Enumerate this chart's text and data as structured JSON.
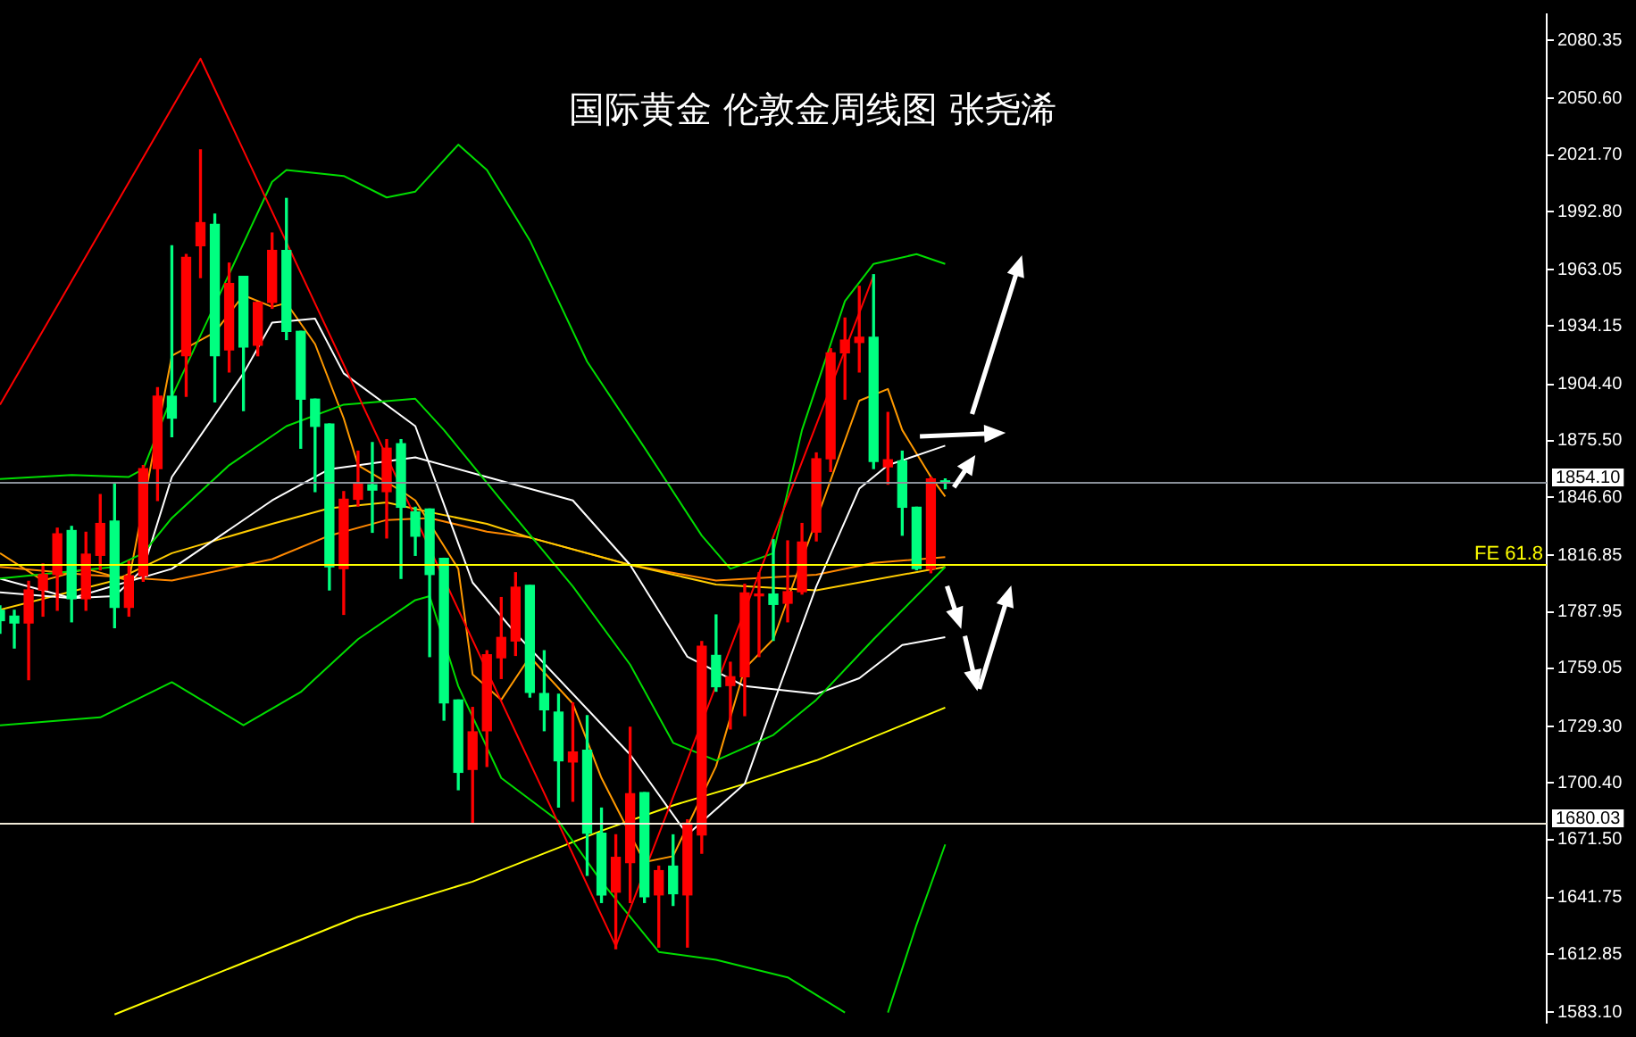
{
  "chart_data": {
    "type": "candlestick",
    "title": "国际黄金 伦敦金周线图 张尧浠",
    "categories": [
      null,
      null,
      null,
      null,
      null,
      null,
      null,
      null,
      null,
      null,
      null,
      null,
      null,
      null,
      null,
      null,
      null,
      null,
      null,
      null,
      null,
      null,
      null,
      null,
      null,
      null,
      null,
      null,
      null,
      null,
      null,
      null,
      null,
      null,
      null,
      null,
      null,
      null,
      null,
      null,
      null,
      null,
      null,
      null,
      null,
      null,
      null,
      null,
      null,
      null,
      null,
      null,
      null,
      null,
      null,
      null,
      null,
      null,
      null,
      null,
      null,
      null,
      null,
      null,
      null,
      null,
      null,
      null,
      null,
      null,
      null,
      null,
      null,
      null,
      null,
      null,
      null,
      null,
      null,
      null,
      null,
      null,
      null,
      null,
      null,
      null,
      null,
      null,
      null,
      null,
      null,
      null,
      null,
      null,
      null,
      null,
      null,
      null,
      null,
      null,
      null,
      null,
      null,
      null,
      null,
      null,
      null,
      null,
      null
    ],
    "ohlc": [
      [
        1788.8,
        1791,
        1777,
        1783.5
      ],
      [
        1785.8,
        1788.8,
        1769.5,
        1782.3
      ],
      [
        1782.3,
        1803.6,
        1753.3,
        1799.2
      ],
      [
        1799.2,
        1812.5,
        1785.8,
        1807.1
      ],
      [
        1807.1,
        1830.8,
        1788.8,
        1827.9
      ],
      [
        1829.6,
        1831.7,
        1782.9,
        1794.7
      ],
      [
        1794.7,
        1828.7,
        1788.8,
        1817.5
      ],
      [
        1816.9,
        1848,
        1809.5,
        1833.2
      ],
      [
        1834.4,
        1853.9,
        1779.9,
        1790.3
      ],
      [
        1790.3,
        1813.9,
        1785.8,
        1806.5
      ],
      [
        1806.5,
        1862.8,
        1803.6,
        1861.3
      ],
      [
        1861.3,
        1902.7,
        1845,
        1898.3
      ],
      [
        1898.3,
        1975.3,
        1877.6,
        1887.1
      ],
      [
        1919,
        1970.8,
        1898.3,
        1969.3
      ],
      [
        1975.3,
        2024.4,
        1959,
        1987.1
      ],
      [
        1986.2,
        1991.5,
        1895.4,
        1919
      ],
      [
        1922,
        1966.4,
        1910.7,
        1956
      ],
      [
        1959.6,
        1959.6,
        1890.9,
        1923.5
      ],
      [
        1924.4,
        1946.3,
        1919,
        1946.3
      ],
      [
        1946.3,
        1981.8,
        1943.3,
        1972.9
      ],
      [
        1972.9,
        1999.5,
        1927.3,
        1931.5
      ],
      [
        1931.5,
        1931.5,
        1871.7,
        1896.8
      ],
      [
        1896.8,
        1896.8,
        1849.5,
        1882.9
      ],
      [
        1884.1,
        1884.1,
        1799.2,
        1811
      ],
      [
        1810.1,
        1849.5,
        1786.7,
        1845.6
      ],
      [
        1845.6,
        1870.2,
        1842.1,
        1853.9
      ],
      [
        1853,
        1874.6,
        1828.7,
        1850.3
      ],
      [
        1849.5,
        1876.1,
        1825.8,
        1871.7
      ],
      [
        1874,
        1876.1,
        1805.1,
        1841.5
      ],
      [
        1839.1,
        1841.5,
        1816.9,
        1826.7
      ],
      [
        1840.6,
        1840.6,
        1765.1,
        1807.1
      ],
      [
        1815.4,
        1815.4,
        1732.6,
        1741.4
      ],
      [
        1742.9,
        1742.9,
        1697,
        1705.9
      ],
      [
        1707.4,
        1739.1,
        1680.2,
        1726.6
      ],
      [
        1727.2,
        1768.1,
        1708.9,
        1766
      ],
      [
        1764.5,
        1795.3,
        1753.9,
        1774.9
      ],
      [
        1773.1,
        1808,
        1765.7,
        1800.6
      ],
      [
        1801.5,
        1801.5,
        1744.4,
        1746.8
      ],
      [
        1746.2,
        1768.1,
        1727.2,
        1737.9
      ],
      [
        1736.7,
        1745.9,
        1688.1,
        1711.8
      ],
      [
        1711.2,
        1741.4,
        1691.1,
        1716.3
      ],
      [
        1717.2,
        1734.9,
        1653.2,
        1674.8
      ],
      [
        1674.8,
        1687.6,
        1639.3,
        1643.2
      ],
      [
        1644.6,
        1673.9,
        1615.6,
        1662.4
      ],
      [
        1659.7,
        1729,
        1639.3,
        1694.9
      ],
      [
        1695.5,
        1695.5,
        1639.3,
        1642.3
      ],
      [
        1643.2,
        1657.9,
        1616.5,
        1655.6
      ],
      [
        1657.9,
        1673.9,
        1637.8,
        1643.8
      ],
      [
        1643.2,
        1681.6,
        1616.5,
        1679.9
      ],
      [
        1673.9,
        1772.8,
        1664.5,
        1770.4
      ],
      [
        1765.7,
        1786.4,
        1747.4,
        1749.7
      ],
      [
        1750.3,
        1762.2,
        1728.1,
        1754.8
      ],
      [
        1754.8,
        1802.1,
        1734.9,
        1797.7
      ],
      [
        1796.2,
        1808,
        1765.1,
        1797.1
      ],
      [
        1797.1,
        1824.9,
        1773.4,
        1791.8
      ],
      [
        1792.4,
        1824.3,
        1782.9,
        1798.3
      ],
      [
        1798.3,
        1833.2,
        1797.1,
        1823.7
      ],
      [
        1828.8,
        1869.3,
        1824.3,
        1866.3
      ],
      [
        1866.3,
        1922.6,
        1859.8,
        1920.5
      ],
      [
        1920.5,
        1938.3,
        1896.8,
        1927
      ],
      [
        1925.8,
        1954.5,
        1910.7,
        1928.5
      ],
      [
        1928.5,
        1960.5,
        1861.3,
        1864.9
      ],
      [
        1862.2,
        1890,
        1853.3,
        1865.8
      ],
      [
        1865.2,
        1870.2,
        1827.2,
        1841.5
      ],
      [
        1841.5,
        1841.5,
        1809.5,
        1810.1
      ],
      [
        1810.1,
        1856.9,
        1808,
        1856
      ],
      [
        1855,
        1856,
        1851,
        1854.1
      ],
      null,
      null,
      null,
      null,
      null,
      null,
      null,
      null,
      null,
      null,
      null,
      null,
      null,
      null,
      null,
      null,
      null,
      null,
      null,
      null,
      null,
      null,
      null,
      null,
      null,
      null,
      null,
      null,
      null,
      null,
      null,
      null,
      null,
      null,
      null,
      null,
      null,
      null,
      null,
      null,
      null,
      null
    ],
    "colors": [
      "#00ff80",
      "#00ff80",
      "#ff0000",
      "#ff0000",
      "#ff0000",
      "#00ff80",
      "#ff0000",
      "#ff0000",
      "#00ff80",
      "#ff0000",
      "#ff0000",
      "#ff0000",
      "#00ff80",
      "#ff0000",
      "#ff0000",
      "#00ff80",
      "#ff0000",
      "#00ff80",
      "#ff0000",
      "#ff0000",
      "#00ff80",
      "#00ff80",
      "#00ff80",
      "#00ff80",
      "#ff0000",
      "#ff0000",
      "#00ff80",
      "#ff0000",
      "#00ff80",
      "#00ff80",
      "#00ff80",
      "#00ff80",
      "#00ff80",
      "#ff0000",
      "#ff0000",
      "#ff0000",
      "#ff0000",
      "#00ff80",
      "#00ff80",
      "#00ff80",
      "#ff0000",
      "#00ff80",
      "#00ff80",
      "#ff0000",
      "#ff0000",
      "#00ff80",
      "#ff0000",
      "#00ff80",
      "#ff0000",
      "#ff0000",
      "#00ff80",
      "#ff0000",
      "#ff0000",
      "#ff0000",
      "#00ff80",
      "#ff0000",
      "#ff0000",
      "#ff0000",
      "#ff0000",
      "#ff0000",
      "#ff0000",
      "#00ff80",
      "#ff0000",
      "#00ff80",
      "#00ff80",
      "#ff0000",
      "#00ff80",
      null,
      null,
      null,
      null,
      null,
      null,
      null,
      null,
      null,
      null,
      null,
      null,
      null,
      null,
      null,
      null,
      null,
      null,
      null,
      null,
      null,
      null,
      null,
      null,
      null,
      null,
      null,
      null,
      null,
      null,
      null,
      null,
      null,
      null,
      null,
      null,
      null,
      null,
      null,
      null,
      null,
      null
    ],
    "series": [
      {
        "type": "line",
        "color": "#ff0000",
        "values": [
          1894,
          null,
          null,
          null,
          null,
          null,
          null,
          null,
          null,
          null,
          null,
          null,
          null,
          null,
          2071,
          null,
          null,
          null,
          null,
          null,
          null,
          null,
          null,
          null,
          null,
          null,
          null,
          null,
          null,
          null,
          null,
          null,
          null,
          null,
          null,
          null,
          null,
          null,
          null,
          null,
          null,
          null,
          null,
          1617,
          null,
          null,
          null,
          null,
          null,
          null,
          null,
          null,
          null,
          null,
          null,
          null,
          null,
          null,
          null,
          null,
          null,
          1960,
          null,
          null,
          null,
          null,
          null,
          null,
          null,
          null,
          null,
          null,
          null,
          null,
          null,
          null,
          null,
          null,
          null,
          null,
          null,
          null,
          null,
          null,
          null,
          null,
          null,
          null,
          null,
          null,
          null,
          null,
          null,
          null,
          null,
          null,
          null,
          null,
          null,
          null,
          null,
          null,
          null,
          null,
          null,
          null,
          null,
          null,
          null
        ]
      },
      {
        "type": "line",
        "color": "#00dd00",
        "values": [
          1856,
          null,
          null,
          null,
          null,
          1858,
          null,
          null,
          null,
          1857,
          1861,
          null,
          1898,
          null,
          null,
          null,
          null,
          null,
          null,
          2008,
          2014,
          null,
          null,
          null,
          2011,
          null,
          null,
          2000,
          null,
          2003,
          null,
          null,
          2027,
          null,
          2014,
          null,
          null,
          1978,
          null,
          null,
          null,
          1916,
          null,
          null,
          null,
          1872,
          null,
          null,
          null,
          1827,
          null,
          1810,
          null,
          null,
          1818,
          null,
          1881,
          null,
          null,
          1947,
          null,
          1966,
          null,
          null,
          1971,
          null,
          1966,
          null,
          null,
          null,
          null,
          null,
          null,
          null,
          null,
          null,
          null,
          null,
          null,
          null,
          null,
          null,
          null,
          null,
          null,
          null,
          null,
          null,
          null,
          null,
          null,
          null,
          null,
          null,
          null,
          null,
          null,
          null,
          null,
          null,
          null,
          null,
          null,
          null,
          null,
          null,
          null,
          null,
          null
        ]
      },
      {
        "type": "line",
        "color": "#00dd00",
        "values": [
          1805,
          null,
          null,
          null,
          null,
          null,
          null,
          null,
          1811,
          null,
          1818,
          null,
          1836,
          null,
          null,
          null,
          1863,
          null,
          null,
          null,
          1883,
          null,
          null,
          null,
          1894,
          null,
          null,
          null,
          null,
          1897,
          null,
          1881,
          null,
          null,
          null,
          1845,
          null,
          null,
          null,
          null,
          1801,
          null,
          null,
          null,
          1761,
          null,
          null,
          1721,
          null,
          null,
          1712,
          null,
          null,
          null,
          1725,
          null,
          null,
          1743,
          null,
          null,
          null,
          1774,
          null,
          null,
          null,
          null,
          1811,
          null,
          null,
          null,
          null,
          null,
          null,
          null,
          null,
          null,
          null,
          null,
          null,
          null,
          null,
          null,
          null,
          null,
          null,
          null,
          null,
          null,
          null,
          null,
          null,
          null,
          null,
          null,
          null,
          null,
          null,
          null,
          null,
          null,
          null,
          null,
          null,
          null,
          null,
          null,
          null,
          null,
          null
        ]
      },
      {
        "type": "line",
        "color": "#00dd00",
        "values": [
          1730,
          null,
          null,
          null,
          null,
          null,
          null,
          1734,
          null,
          null,
          null,
          null,
          1752,
          null,
          null,
          null,
          null,
          1730,
          null,
          null,
          null,
          1747,
          null,
          null,
          null,
          1774,
          null,
          null,
          null,
          1794,
          1796,
          null,
          1750,
          null,
          null,
          1703,
          null,
          null,
          null,
          1681,
          null,
          null,
          1650,
          null,
          null,
          null,
          1614,
          null,
          null,
          null,
          1610,
          null,
          null,
          null,
          null,
          1601,
          null,
          null,
          null,
          1583,
          null,
          null,
          null,
          null,
          null,
          null,
          null,
          null,
          null,
          null,
          null,
          null,
          null,
          null,
          null,
          null,
          null,
          null,
          null,
          null,
          null,
          null,
          null,
          null,
          null,
          null,
          null,
          null,
          null,
          null,
          null,
          null,
          null,
          null,
          null,
          null,
          null,
          null,
          null,
          null,
          null,
          null,
          null,
          null,
          null,
          null,
          null,
          null,
          null
        ]
      },
      {
        "type": "line",
        "color": "#00dd00",
        "values": [
          null,
          null,
          null,
          null,
          null,
          null,
          null,
          null,
          null,
          null,
          null,
          null,
          null,
          null,
          null,
          null,
          null,
          null,
          null,
          null,
          null,
          null,
          null,
          null,
          null,
          null,
          null,
          null,
          null,
          null,
          null,
          null,
          null,
          null,
          null,
          null,
          null,
          null,
          null,
          null,
          null,
          null,
          null,
          null,
          null,
          null,
          null,
          null,
          null,
          null,
          null,
          null,
          null,
          null,
          null,
          null,
          null,
          null,
          null,
          null,
          null,
          null,
          1583,
          null,
          1628,
          null,
          1669,
          null,
          null,
          null,
          null,
          null,
          null,
          null,
          null,
          null,
          null,
          null,
          null,
          null,
          null,
          null,
          null,
          null,
          null,
          null,
          null,
          null,
          null,
          null,
          null,
          null,
          null,
          null,
          null,
          null,
          null,
          null,
          null,
          null,
          null,
          null,
          null,
          null,
          null,
          null,
          null,
          null,
          null
        ]
      },
      {
        "type": "line",
        "color": "#ffffff",
        "values": [
          1805,
          null,
          null,
          null,
          null,
          1795,
          null,
          null,
          1796,
          null,
          1810,
          null,
          1857,
          null,
          null,
          null,
          null,
          1910,
          null,
          1936,
          null,
          null,
          1938,
          null,
          1910,
          null,
          null,
          null,
          null,
          1883,
          null,
          null,
          null,
          1803,
          null,
          null,
          1777,
          null,
          null,
          null,
          null,
          null,
          null,
          null,
          1715,
          null,
          null,
          null,
          1674,
          null,
          null,
          null,
          1700,
          null,
          1741,
          null,
          null,
          1801,
          null,
          null,
          1851,
          null,
          1863,
          null,
          null,
          null,
          1873,
          null,
          null,
          null,
          null,
          null,
          null,
          null,
          null,
          null,
          null,
          null,
          null,
          null,
          null,
          null,
          null,
          null,
          null,
          null,
          null,
          null,
          null,
          null,
          null,
          null,
          null,
          null,
          null,
          null,
          null,
          null,
          null,
          null,
          null,
          null,
          null,
          null,
          null,
          null,
          null,
          null,
          null
        ]
      },
      {
        "type": "line",
        "color": "#ffffff",
        "values": [
          1798,
          null,
          null,
          null,
          null,
          1795,
          null,
          null,
          null,
          null,
          null,
          null,
          1810,
          null,
          null,
          null,
          null,
          null,
          null,
          1845,
          null,
          null,
          null,
          1861,
          null,
          null,
          null,
          null,
          null,
          1867,
          null,
          null,
          null,
          null,
          1857,
          null,
          null,
          null,
          null,
          null,
          1845,
          null,
          null,
          null,
          1812,
          null,
          null,
          null,
          1765,
          null,
          null,
          null,
          1750,
          null,
          null,
          null,
          null,
          1746,
          null,
          null,
          1754,
          null,
          null,
          1771,
          null,
          null,
          1775,
          null,
          null,
          null,
          null,
          null,
          null,
          null,
          null,
          null,
          null,
          null,
          null,
          null,
          null,
          null,
          null,
          null,
          null,
          null,
          null,
          null,
          null,
          null,
          null,
          null,
          null,
          null,
          null,
          null,
          null,
          null,
          null,
          null,
          null,
          null,
          null,
          null,
          null,
          null,
          null,
          null,
          null
        ]
      },
      {
        "type": "line",
        "color": "#ff9900",
        "values": [
          1818,
          null,
          null,
          1804,
          null,
          null,
          1810,
          null,
          null,
          1804,
          null,
          null,
          1919,
          null,
          null,
          1931,
          null,
          1950,
          null,
          1944,
          1946,
          null,
          1925,
          null,
          1887,
          1863,
          null,
          null,
          1850,
          1845,
          null,
          null,
          1810,
          1756,
          null,
          1743,
          null,
          1765,
          null,
          null,
          1741,
          null,
          1703,
          null,
          null,
          1660,
          null,
          1663,
          null,
          null,
          1709,
          null,
          1759,
          null,
          1774,
          null,
          null,
          null,
          null,
          null,
          1896,
          null,
          1902,
          1881,
          null,
          1857,
          1847,
          null,
          null,
          null,
          null,
          null,
          null,
          null,
          null,
          null,
          null,
          null,
          null,
          null,
          null,
          null,
          null,
          null,
          null,
          null,
          null,
          null,
          null,
          null,
          null,
          null,
          null,
          null,
          null,
          null,
          null,
          null,
          null,
          null,
          null,
          null,
          null,
          null,
          null,
          null,
          null,
          null,
          null
        ]
      },
      {
        "type": "line",
        "color": "#ffcc00",
        "values": [
          1789,
          null,
          null,
          null,
          null,
          null,
          null,
          null,
          1804,
          null,
          null,
          null,
          1818,
          null,
          null,
          null,
          null,
          null,
          null,
          1833,
          null,
          null,
          null,
          1841,
          null,
          null,
          null,
          1844,
          null,
          null,
          1839,
          null,
          null,
          null,
          1833,
          null,
          null,
          1826,
          null,
          null,
          null,
          null,
          null,
          null,
          1812,
          null,
          null,
          null,
          null,
          null,
          1802,
          null,
          null,
          null,
          null,
          null,
          null,
          1799,
          null,
          null,
          null,
          null,
          null,
          null,
          null,
          null,
          1811,
          null,
          null,
          null,
          null,
          null,
          null,
          null,
          null,
          null,
          null,
          null,
          null,
          null,
          null,
          null,
          null,
          null,
          null,
          null,
          null,
          null,
          null,
          null,
          null,
          null,
          null,
          null,
          null,
          null,
          null,
          null,
          null,
          null,
          null,
          null,
          null,
          null,
          null,
          null,
          null,
          null,
          null
        ]
      },
      {
        "type": "line",
        "color": "#ff8800",
        "values": [
          1811,
          null,
          null,
          null,
          null,
          null,
          1807,
          null,
          null,
          null,
          null,
          null,
          1804,
          null,
          null,
          null,
          null,
          null,
          null,
          1815,
          null,
          null,
          null,
          1827,
          null,
          null,
          null,
          1835,
          null,
          null,
          1836,
          null,
          null,
          null,
          1829,
          null,
          null,
          1826,
          null,
          null,
          null,
          null,
          null,
          null,
          1812,
          null,
          null,
          null,
          null,
          null,
          1804,
          null,
          null,
          null,
          null,
          null,
          null,
          1807,
          null,
          null,
          null,
          1813,
          null,
          null,
          null,
          null,
          1816,
          null,
          null,
          null,
          null,
          null,
          null,
          null,
          null,
          null,
          null,
          null,
          null,
          null,
          null,
          null,
          null,
          null,
          null,
          null,
          null,
          null,
          null,
          null,
          null,
          null,
          null,
          null,
          null,
          null,
          null,
          null,
          null,
          null,
          null,
          null,
          null,
          null,
          null,
          null,
          null,
          null,
          null
        ]
      },
      {
        "type": "line",
        "color": "#ffff00",
        "values": [
          null,
          null,
          null,
          null,
          null,
          null,
          null,
          null,
          1582,
          null,
          null,
          null,
          null,
          null,
          null,
          null,
          null,
          null,
          null,
          null,
          null,
          null,
          null,
          null,
          null,
          1632,
          null,
          null,
          null,
          null,
          null,
          null,
          null,
          1650,
          null,
          null,
          null,
          null,
          null,
          null,
          null,
          null,
          1676,
          null,
          null,
          null,
          null,
          1689,
          null,
          null,
          null,
          null,
          1700,
          null,
          null,
          null,
          null,
          1712,
          null,
          null,
          null,
          null,
          null,
          null,
          null,
          null,
          1739,
          null,
          null,
          null,
          null,
          null,
          null,
          null,
          null,
          null,
          null,
          null,
          null,
          null,
          null,
          null,
          null,
          null,
          null,
          null,
          null,
          null,
          null,
          null,
          null,
          null,
          null,
          null,
          null,
          null,
          null,
          null,
          null,
          null,
          null,
          null,
          null,
          null,
          null,
          null,
          null,
          null,
          null
        ]
      }
    ],
    "ylim": [
      1577.8,
      2093.7
    ],
    "yticks": [
      {
        "value": 2080.35,
        "label": "2080.35"
      },
      {
        "value": 2050.6,
        "label": "2050.60"
      },
      {
        "value": 2021.7,
        "label": "2021.70"
      },
      {
        "value": 1992.8,
        "label": "1992.80"
      },
      {
        "value": 1963.05,
        "label": "1963.05"
      },
      {
        "value": 1934.15,
        "label": "1934.15"
      },
      {
        "value": 1904.4,
        "label": "1904.40"
      },
      {
        "value": 1875.5,
        "label": "1875.50"
      },
      {
        "value": 1846.6,
        "label": "1846.60"
      },
      {
        "value": 1816.85,
        "label": "1816.85"
      },
      {
        "value": 1787.95,
        "label": "1787.95"
      },
      {
        "value": 1759.05,
        "label": "1759.05"
      },
      {
        "value": 1729.3,
        "label": "1729.30"
      },
      {
        "value": 1700.4,
        "label": "1700.40"
      },
      {
        "value": 1671.5,
        "label": "1671.50"
      },
      {
        "value": 1641.75,
        "label": "1641.75"
      },
      {
        "value": 1612.85,
        "label": "1612.85"
      },
      {
        "value": 1583.1,
        "label": "1583.10"
      }
    ],
    "ref_lines": [
      {
        "axis": "y",
        "value": 1854.1,
        "label": "1854.10",
        "color": "#8a9099"
      },
      {
        "axis": "y",
        "value": 1680.03,
        "label": "1680.03",
        "color": "#f0ead8"
      },
      {
        "axis": "y",
        "value": 1812.6,
        "label": "FE 61.8",
        "color": "#ffff00"
      }
    ],
    "tick_labels": "y"
  }
}
